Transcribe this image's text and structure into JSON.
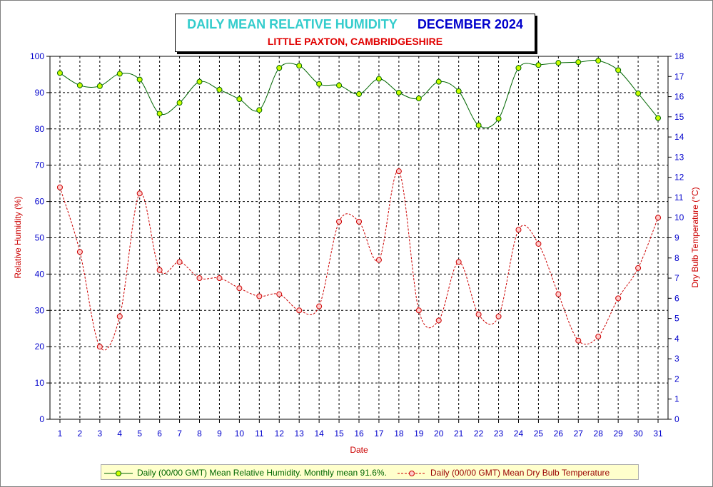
{
  "header": {
    "title": "DAILY MEAN RELATIVE HUMIDITY",
    "month": "DECEMBER 2024",
    "subtitle": "LITTLE PAXTON, CAMBRIDGESHIRE"
  },
  "legend": {
    "humidity_label": "Daily (00/00 GMT) Mean Relative Humidity. Monthly mean 91.6%.",
    "temperature_label": "Daily (00/00 GMT) Mean Dry Bulb Temperature"
  },
  "colors": {
    "humidity_line": "#006600",
    "humidity_marker": "#ccff00",
    "temperature_line": "#cc0000",
    "temperature_marker": "#ffcccc",
    "left_axis_text": "#0000cc",
    "right_axis_text": "#0000cc",
    "legend_background": "#ffffcc"
  },
  "chart_data": {
    "type": "line",
    "xlabel": "Date",
    "ylabel": "Relative Humidity (%)",
    "y2label": "Dry Bulb Temperature (°C)",
    "x": [
      1,
      2,
      3,
      4,
      5,
      6,
      7,
      8,
      9,
      10,
      11,
      12,
      13,
      14,
      15,
      16,
      17,
      18,
      19,
      20,
      21,
      22,
      23,
      24,
      25,
      26,
      27,
      28,
      29,
      30,
      31
    ],
    "xlim": [
      0.5,
      31.5
    ],
    "ylim": [
      0,
      100
    ],
    "yticks": [
      0,
      10,
      20,
      30,
      40,
      50,
      60,
      70,
      80,
      90,
      100
    ],
    "y2lim": [
      0,
      18
    ],
    "y2ticks": [
      0,
      1,
      2,
      3,
      4,
      5,
      6,
      7,
      8,
      9,
      10,
      11,
      12,
      13,
      14,
      15,
      16,
      17,
      18
    ],
    "grid": true,
    "legend_position": "bottom",
    "series": [
      {
        "name": "Daily (00/00 GMT) Mean Relative Humidity. Monthly mean 91.6%.",
        "axis": "left",
        "line_style": "solid",
        "values": [
          95.4,
          92.0,
          91.8,
          95.2,
          93.6,
          84.2,
          87.2,
          93.0,
          90.8,
          88.2,
          85.2,
          96.8,
          97.4,
          92.4,
          92.0,
          89.6,
          93.8,
          90.0,
          88.4,
          93.0,
          90.4,
          81.0,
          82.8,
          96.8,
          97.6,
          98.2,
          98.4,
          98.8,
          96.2,
          89.8,
          83.0
        ]
      },
      {
        "name": "Daily (00/00 GMT) Mean Dry Bulb Temperature",
        "axis": "right",
        "line_style": "dashed",
        "values": [
          11.5,
          8.3,
          3.6,
          5.1,
          11.2,
          7.4,
          7.8,
          7.0,
          7.0,
          6.5,
          6.1,
          6.2,
          5.4,
          5.6,
          9.8,
          9.8,
          7.9,
          12.3,
          5.4,
          4.9,
          7.8,
          5.2,
          5.1,
          9.4,
          8.7,
          6.2,
          3.9,
          4.1,
          6.0,
          7.5,
          10.0
        ]
      }
    ]
  }
}
